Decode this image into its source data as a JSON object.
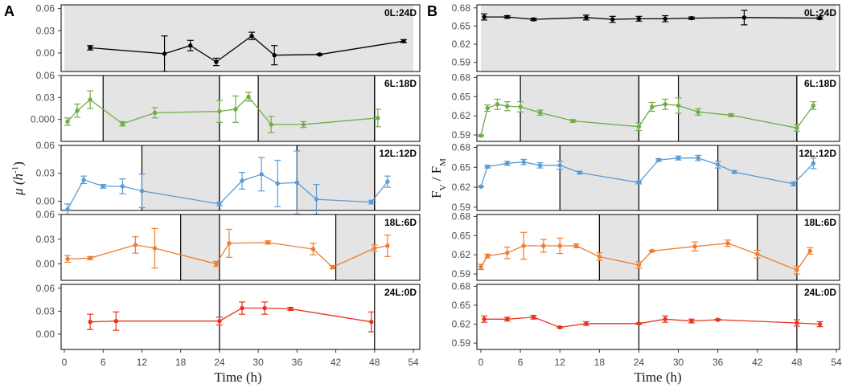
{
  "figure": {
    "letter_a": "A",
    "letter_b": "B"
  },
  "chart_data": {
    "type": "line",
    "x_ticks": [
      0,
      6,
      12,
      18,
      24,
      30,
      36,
      42,
      48,
      54
    ],
    "xlabel": "Time (h)",
    "panels": [
      {
        "id": "A",
        "ylabel_main": "μ (h",
        "ylabel_sup": "-1",
        "ylabel_close": ")",
        "rows": [
          {
            "label": "0L:24D",
            "color": "#000000",
            "ylim": [
              -0.025,
              0.065
            ],
            "yticks": [
              "0.00",
              "0.03",
              "0.06"
            ],
            "dark": [
              [
                0,
                54
              ]
            ],
            "vlines": [],
            "x": [
              4,
              15.5,
              19.5,
              23.5,
              29,
              32.5,
              39.5,
              52.5
            ],
            "y": [
              0.007,
              -0.001,
              0.01,
              -0.012,
              0.023,
              -0.003,
              -0.002,
              0.016
            ],
            "err": [
              0.003,
              0.024,
              0.007,
              0.005,
              0.005,
              0.013,
              0.001,
              0.002
            ]
          },
          {
            "label": "6L:18D",
            "color": "#6fad46",
            "ylim": [
              -0.03,
              0.06
            ],
            "yticks": [
              "0.000",
              "0.03",
              "0.06"
            ],
            "dark": [
              [
                6,
                24
              ],
              [
                30,
                48
              ]
            ],
            "vlines": [
              24,
              48
            ],
            "x": [
              0.5,
              2,
              4,
              9,
              14,
              24,
              26.5,
              28.5,
              32,
              37,
              48.5
            ],
            "y": [
              -0.003,
              0.012,
              0.027,
              -0.006,
              0.009,
              0.011,
              0.014,
              0.031,
              -0.007,
              -0.007,
              0.002
            ],
            "err": [
              0.005,
              0.009,
              0.012,
              0.003,
              0.007,
              0.015,
              0.018,
              0.006,
              0.011,
              0.004,
              0.012
            ]
          },
          {
            "label": "12L:12D",
            "color": "#5b9bd5",
            "ylim": [
              -0.01,
              0.06
            ],
            "yticks": [
              "0.00",
              "0.03",
              "0.06"
            ],
            "dark": [
              [
                12,
                24
              ],
              [
                36,
                48
              ]
            ],
            "vlines": [
              24,
              36,
              48
            ],
            "x": [
              0.5,
              3,
              6,
              9,
              12,
              24,
              27.5,
              30.5,
              33,
              36,
              39,
              47.5,
              50
            ],
            "y": [
              -0.009,
              0.023,
              0.016,
              0.016,
              0.011,
              -0.003,
              0.022,
              0.029,
              0.019,
              0.02,
              0.002,
              -0.001,
              0.021
            ],
            "err": [
              0.006,
              0.004,
              0.002,
              0.008,
              0.018,
              0.002,
              0.009,
              0.018,
              0.025,
              0.034,
              0.016,
              0.002,
              0.006
            ]
          },
          {
            "label": "18L:6D",
            "color": "#ed7d31",
            "ylim": [
              -0.02,
              0.06
            ],
            "yticks": [
              "0.00",
              "0.03",
              "0.06"
            ],
            "dark": [
              [
                18,
                24
              ],
              [
                42,
                48
              ]
            ],
            "vlines": [],
            "x": [
              0.5,
              4,
              11,
              14,
              23.5,
              25.5,
              31.5,
              38.5,
              41.5,
              48,
              50
            ],
            "y": [
              0.006,
              0.007,
              0.023,
              0.019,
              0.0,
              0.025,
              0.026,
              0.018,
              -0.004,
              0.019,
              0.022
            ],
            "err": [
              0.004,
              0.002,
              0.01,
              0.024,
              0.003,
              0.017,
              0.002,
              0.007,
              0.002,
              0.004,
              0.013
            ]
          },
          {
            "label": "24L:0D",
            "color": "#e8341c",
            "ylim": [
              -0.02,
              0.065
            ],
            "yticks": [
              "0.00",
              "0.03",
              "0.06"
            ],
            "dark": [],
            "vlines": [
              24,
              48
            ],
            "x": [
              4,
              8,
              24,
              27.5,
              31,
              35,
              47.5
            ],
            "y": [
              0.016,
              0.017,
              0.017,
              0.034,
              0.034,
              0.033,
              0.016
            ],
            "err": [
              0.01,
              0.012,
              0.005,
              0.008,
              0.008,
              0.002,
              0.013
            ]
          }
        ]
      },
      {
        "id": "B",
        "ylabel_main": "F",
        "ylabel_sub1": "V",
        "ylabel_mid": " / F",
        "ylabel_sub2": "M",
        "rows": [
          {
            "label": "0L:24D",
            "color": "#000000",
            "ylim": [
              0.575,
              0.685
            ],
            "yticks": [
              "0.59",
              "0.62",
              "0.65",
              "0.68"
            ],
            "dark": [
              [
                0,
                54
              ]
            ],
            "vlines": [],
            "x": [
              0.5,
              4,
              8,
              16,
              20,
              24,
              28,
              32,
              40,
              51.5
            ],
            "y": [
              0.665,
              0.665,
              0.661,
              0.664,
              0.661,
              0.662,
              0.662,
              0.663,
              0.664,
              0.663
            ],
            "err": [
              0.005,
              0.002,
              0.002,
              0.004,
              0.005,
              0.004,
              0.005,
              0.002,
              0.012,
              0.002
            ]
          },
          {
            "label": "6L:18D",
            "color": "#6fad46",
            "ylim": [
              0.58,
              0.683
            ],
            "yticks": [
              "0.59",
              "0.62",
              "0.65",
              "0.68"
            ],
            "dark": [
              [
                6,
                24
              ],
              [
                30,
                48
              ]
            ],
            "vlines": [
              24,
              48
            ],
            "x": [
              0,
              1,
              2.5,
              4,
              6,
              9,
              14,
              24,
              26,
              28,
              30,
              33,
              38,
              48,
              50.5
            ],
            "y": [
              0.589,
              0.632,
              0.638,
              0.635,
              0.634,
              0.625,
              0.612,
              0.603,
              0.634,
              0.638,
              0.636,
              0.626,
              0.621,
              0.601,
              0.636
            ],
            "err": [
              0.001,
              0.005,
              0.008,
              0.007,
              0.008,
              0.004,
              0.002,
              0.006,
              0.007,
              0.008,
              0.012,
              0.005,
              0.002,
              0.005,
              0.006
            ]
          },
          {
            "label": "12L:12D",
            "color": "#5b9bd5",
            "ylim": [
              0.585,
              0.683
            ],
            "yticks": [
              "0.59",
              "0.62",
              "0.65",
              "0.68"
            ],
            "dark": [
              [
                12,
                24
              ],
              [
                36,
                48
              ]
            ],
            "vlines": [],
            "x": [
              0,
              1,
              4,
              6.5,
              9,
              12,
              15,
              24,
              27,
              30,
              33,
              36,
              38.5,
              47.5,
              50.5
            ],
            "y": [
              0.621,
              0.651,
              0.656,
              0.658,
              0.653,
              0.653,
              0.642,
              0.627,
              0.661,
              0.664,
              0.664,
              0.654,
              0.643,
              0.625,
              0.656
            ],
            "err": [
              0.001,
              0.002,
              0.003,
              0.004,
              0.004,
              0.006,
              0.002,
              0.002,
              0.002,
              0.003,
              0.004,
              0.005,
              0.002,
              0.003,
              0.008
            ]
          },
          {
            "label": "18L:6D",
            "color": "#ed7d31",
            "ylim": [
              0.58,
              0.683
            ],
            "yticks": [
              "0.59",
              "0.62",
              "0.65",
              "0.68"
            ],
            "dark": [
              [
                18,
                24
              ],
              [
                42,
                48
              ]
            ],
            "vlines": [],
            "x": [
              0,
              1,
              4,
              6.5,
              9.5,
              12,
              14.5,
              18,
              24,
              26,
              32.5,
              37.5,
              42,
              48,
              50
            ],
            "y": [
              0.601,
              0.618,
              0.623,
              0.634,
              0.634,
              0.634,
              0.634,
              0.617,
              0.604,
              0.626,
              0.633,
              0.638,
              0.621,
              0.596,
              0.626
            ],
            "err": [
              0.004,
              0.003,
              0.009,
              0.021,
              0.01,
              0.012,
              0.003,
              0.006,
              0.005,
              0.001,
              0.007,
              0.005,
              0.006,
              0.006,
              0.005
            ]
          },
          {
            "label": "24L:0D",
            "color": "#e8341c",
            "ylim": [
              0.58,
              0.683
            ],
            "yticks": [
              "0.59",
              "0.62",
              "0.65",
              "0.68"
            ],
            "dark": [],
            "vlines": [
              24,
              48
            ],
            "x": [
              0.5,
              4,
              8,
              12,
              16,
              24,
              28,
              32,
              36,
              48,
              51.5
            ],
            "y": [
              0.628,
              0.628,
              0.631,
              0.615,
              0.621,
              0.621,
              0.628,
              0.625,
              0.627,
              0.622,
              0.62
            ],
            "err": [
              0.005,
              0.003,
              0.003,
              0.001,
              0.003,
              0.001,
              0.005,
              0.003,
              0.001,
              0.005,
              0.004
            ]
          }
        ]
      }
    ]
  }
}
